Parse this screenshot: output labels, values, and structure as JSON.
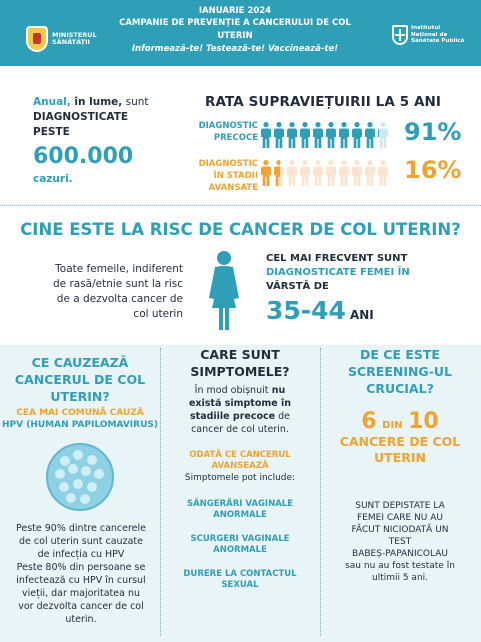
{
  "header": {
    "ministry_lines": [
      "MINISTERUL",
      "SĂNĂTĂȚII"
    ],
    "date": "IANUARIE 2024",
    "campaign": "CAMPANIE DE PREVENȚIE A CANCERULUI DE COL UTERIN",
    "slogan": "Informează-te! Testează-te!  Vaccinează-te!",
    "institute_lines": [
      "Institutul",
      "Național de",
      "Sănătate Publică"
    ]
  },
  "stats": {
    "line1_a": "Anual,",
    "line1_b": " în lume,",
    "line1_c": " sunt",
    "line2": "DIAGNOSTICATE",
    "line3": "PESTE",
    "big_number": "600.000",
    "unit": "cazuri."
  },
  "survival": {
    "title": "RATA SUPRAVIEȚUIRII LA 5 ANI",
    "rows": [
      {
        "label_lines": [
          "DIAGNOSTIC",
          "PRECOCE"
        ],
        "pct": "91%",
        "filled": 9.1,
        "color": "#2e9fb7",
        "light": "#cde9ef"
      },
      {
        "label_lines": [
          "DIAGNOSTIC",
          "ÎN STADII AVANSATE"
        ],
        "pct": "16%",
        "filled": 1.6,
        "color": "#f0a330",
        "light": "#fbe4cf"
      }
    ]
  },
  "risk": {
    "title": "CINE ESTE LA RISC DE CANCER DE  COL UTERIN?",
    "left_lines": [
      "Toate femeile, indiferent",
      "de rasă/etnie sunt la risc",
      "de a dezvolta cancer de",
      "col uterin"
    ],
    "right_a": "CEL MAI FRECVENT SUNT",
    "right_b": "DIAGNOSTICATE FEMEI ÎN",
    "right_c": "VÂRSTĂ DE",
    "age": "35-44",
    "age_unit": "ANI"
  },
  "col1": {
    "title_lines": [
      "CE CAUZEAZĂ",
      "CANCERUL DE COL",
      "UTERIN?"
    ],
    "sub": "CEA MAI COMUNĂ CAUZĂ",
    "hpv": "HPV (HUMAN PAPILOMAVIRUS)",
    "body_lines": [
      "Peste 90% dintre cancerele",
      "de col uterin sunt cauzate",
      "de infecția cu HPV",
      "Peste 80% din persoane se",
      "infectează cu HPV în cursul",
      "vieții, dar majoritatea nu",
      "vor  dezvolta cancer de col",
      "uterin."
    ]
  },
  "col2": {
    "title_lines": [
      "CARE SUNT",
      "SIMPTOMELE?"
    ],
    "intro_a": "În mod obișnuit",
    "intro_b": " nu",
    "intro_c": "există simptome în",
    "intro_d": "stadiile precoce",
    "intro_e": " de",
    "intro_f": "cancer de col uterin.",
    "once_lines": [
      "ODATĂ CE CANCERUL",
      "AVANSEAZĂ"
    ],
    "may": "Simptomele pot include:",
    "symptoms": [
      [
        "SÂNGERĂRI VAGINALE",
        "ANORMALE"
      ],
      [
        "SCURGERI VAGINALE",
        "ANORMALE"
      ],
      [
        "DURERE LA CONTACTUL",
        "SEXUAL"
      ]
    ]
  },
  "col3": {
    "title_lines": [
      "DE CE ESTE",
      "SCREENING-UL",
      "CRUCIAL?"
    ],
    "n1": "6",
    "din": "DIN",
    "n2": "10",
    "hl_lines": [
      "CANCERE DE COL",
      "UTERIN"
    ],
    "body_lines": [
      "SUNT DEPISTATE LA",
      "FEMEI CARE NU AU",
      "FĂCUT NICIODATĂ UN",
      "TEST",
      "BABEȘ-PAPANICOLAU",
      "sau nu au fost testate în",
      "ultimii 5 ani."
    ]
  }
}
